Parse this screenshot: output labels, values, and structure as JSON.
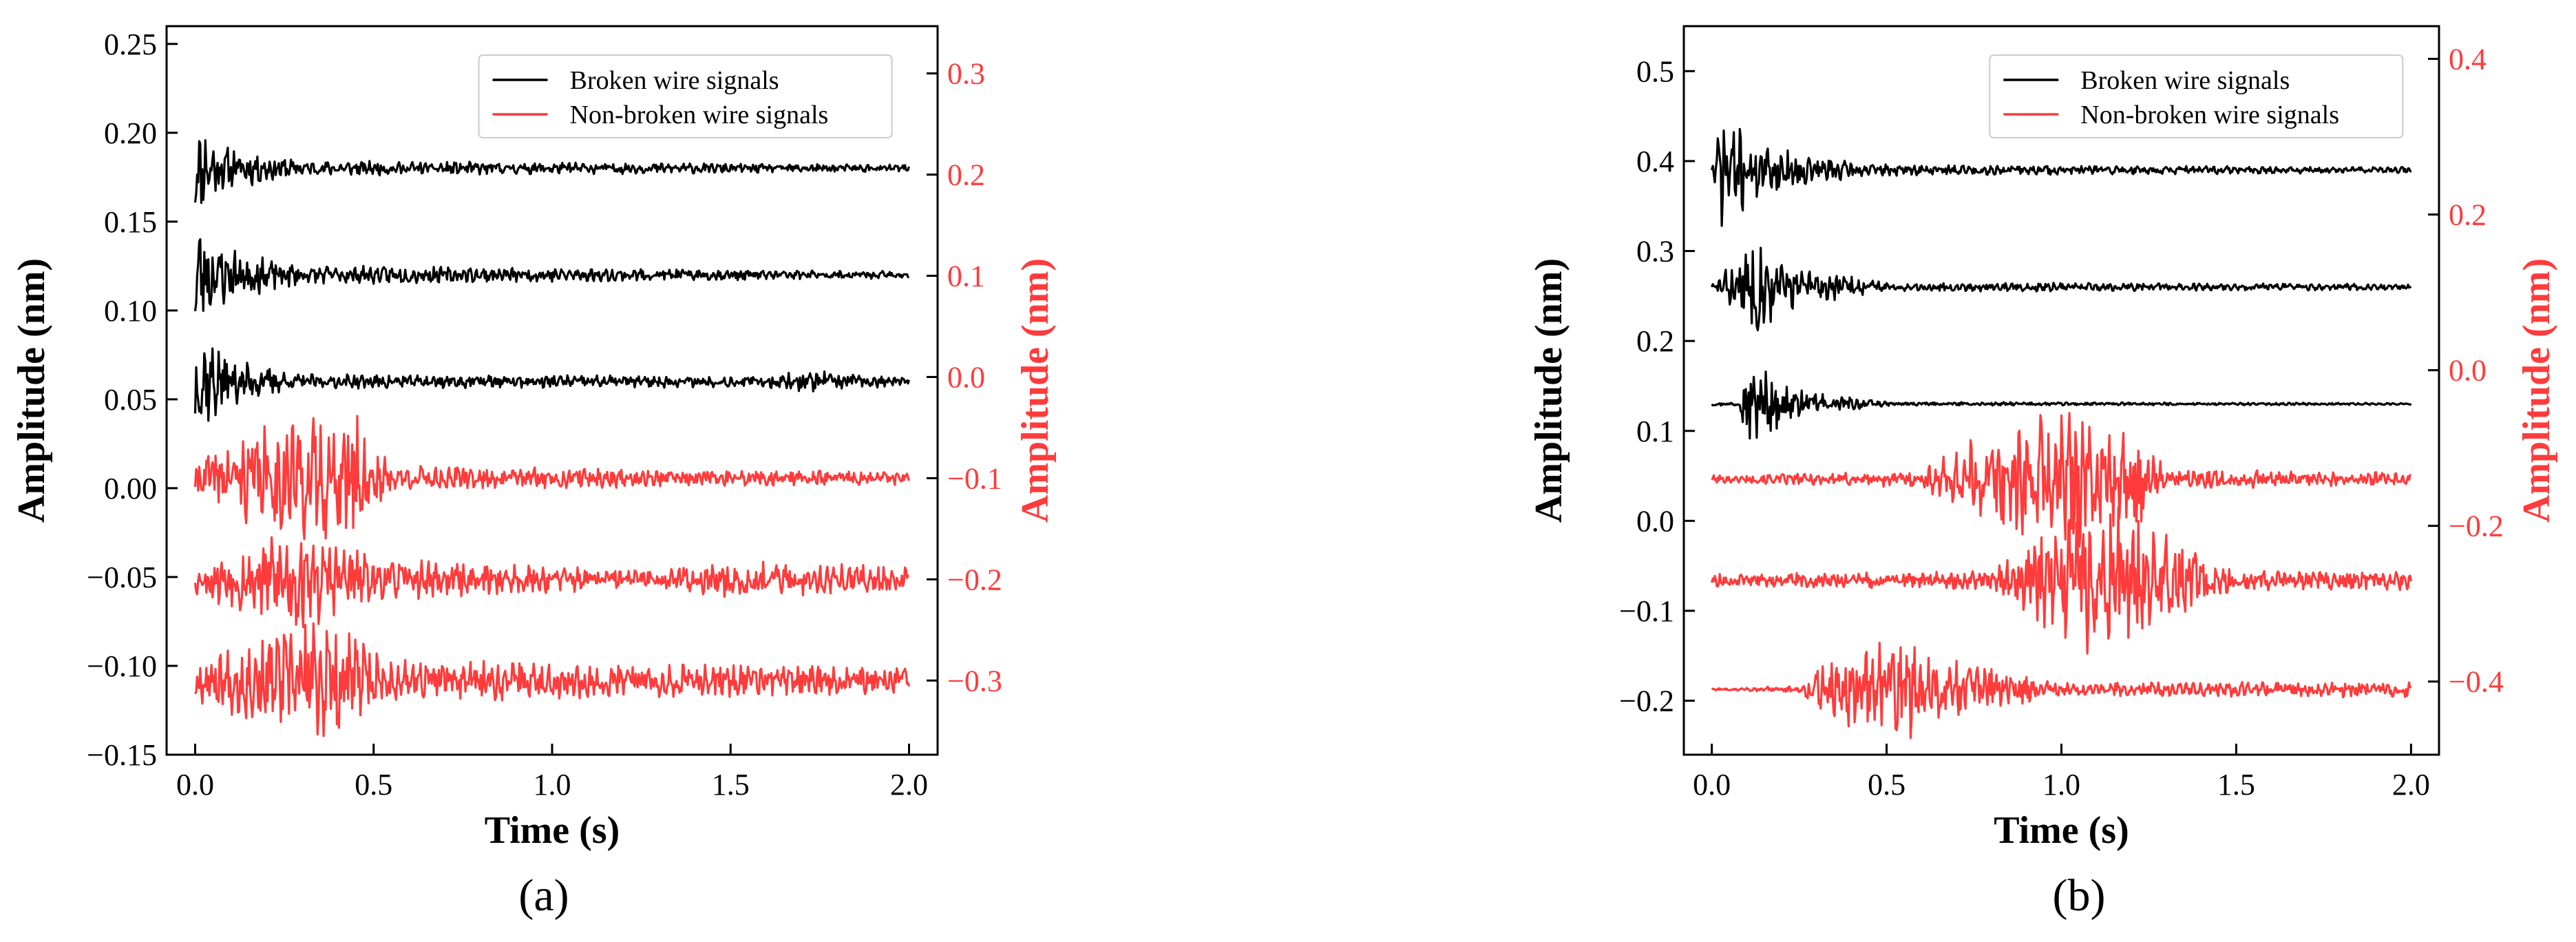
{
  "chart_data": [
    {
      "type": "line",
      "caption": "(a)",
      "xlabel": "Time (s)",
      "ylabel": "Amplitude (nm)",
      "ylabel_right": "Amplitude (nm)",
      "xlim": [
        -0.08,
        2.08
      ],
      "ylim": [
        -0.15,
        0.26
      ],
      "ylim_right": [
        -0.3733,
        0.3467
      ],
      "xticks": [
        0.0,
        0.5,
        1.0,
        1.5,
        2.0
      ],
      "xtick_labels": [
        "0.0",
        "0.5",
        "1.0",
        "1.5",
        "2.0"
      ],
      "yticks": [
        -0.15,
        -0.1,
        -0.05,
        0.0,
        0.05,
        0.1,
        0.15,
        0.2,
        0.25
      ],
      "ytick_labels": [
        "−0.15",
        "−0.10",
        "−0.05",
        "0.00",
        "0.05",
        "0.10",
        "0.15",
        "0.20",
        "0.25"
      ],
      "yticks_right": [
        -0.3,
        -0.2,
        -0.1,
        0.0,
        0.1,
        0.2,
        0.3
      ],
      "ytick_labels_right": [
        "−0.3",
        "−0.2",
        "−0.1",
        "0.0",
        "0.1",
        "0.2",
        "0.3"
      ],
      "legend": {
        "placement": "upper-center",
        "entries": [
          {
            "label": "Broken wire signals",
            "color": "#000000"
          },
          {
            "label": "Non-broken wire signals",
            "color": "#ff3b3b"
          }
        ]
      },
      "series": [
        {
          "group": "broken",
          "axis": "left",
          "color": "#000000",
          "baseline": 0.18,
          "seed": 11,
          "envelope": [
            [
              0,
              0.026
            ],
            [
              0.08,
              0.012
            ],
            [
              0.3,
              0.004
            ],
            [
              2.0,
              0.002
            ]
          ]
        },
        {
          "group": "broken",
          "axis": "left",
          "color": "#000000",
          "baseline": 0.12,
          "seed": 23,
          "envelope": [
            [
              0,
              0.03
            ],
            [
              0.1,
              0.014
            ],
            [
              0.3,
              0.005
            ],
            [
              2.0,
              0.002
            ]
          ]
        },
        {
          "group": "broken",
          "axis": "left",
          "color": "#000000",
          "baseline": 0.06,
          "seed": 37,
          "envelope": [
            [
              0,
              0.03
            ],
            [
              0.1,
              0.012
            ],
            [
              0.3,
              0.004
            ],
            [
              1.6,
              0.003
            ],
            [
              1.7,
              0.006
            ],
            [
              2.0,
              0.002
            ]
          ]
        },
        {
          "group": "non-broken",
          "axis": "right",
          "color": "#ff3b3b",
          "baseline": -0.1,
          "seed": 41,
          "envelope": [
            [
              0,
              0.02
            ],
            [
              0.25,
              0.06
            ],
            [
              0.45,
              0.06
            ],
            [
              0.55,
              0.012
            ],
            [
              2.0,
              0.006
            ]
          ]
        },
        {
          "group": "non-broken",
          "axis": "right",
          "color": "#ff3b3b",
          "baseline": -0.2,
          "seed": 53,
          "envelope": [
            [
              0,
              0.015
            ],
            [
              0.3,
              0.055
            ],
            [
              0.5,
              0.02
            ],
            [
              1.3,
              0.008
            ],
            [
              1.4,
              0.018
            ],
            [
              2.0,
              0.012
            ]
          ]
        },
        {
          "group": "non-broken",
          "axis": "right",
          "color": "#ff3b3b",
          "baseline": -0.3,
          "seed": 67,
          "envelope": [
            [
              0,
              0.02
            ],
            [
              0.35,
              0.06
            ],
            [
              0.55,
              0.02
            ],
            [
              2.0,
              0.012
            ]
          ]
        }
      ]
    },
    {
      "type": "line",
      "caption": "(b)",
      "xlabel": "Time (s)",
      "ylabel": "Amplitude (nm)",
      "ylabel_right": "Amplitude (nm)",
      "xlim": [
        -0.08,
        2.08
      ],
      "ylim": [
        -0.26,
        0.55
      ],
      "ylim_right": [
        -0.494,
        0.442
      ],
      "xticks": [
        0.0,
        0.5,
        1.0,
        1.5,
        2.0
      ],
      "xtick_labels": [
        "0.0",
        "0.5",
        "1.0",
        "1.5",
        "2.0"
      ],
      "yticks": [
        -0.2,
        -0.1,
        0.0,
        0.1,
        0.2,
        0.3,
        0.4,
        0.5
      ],
      "ytick_labels": [
        "−0.2",
        "−0.1",
        "0.0",
        "0.1",
        "0.2",
        "0.3",
        "0.4",
        "0.5"
      ],
      "yticks_right": [
        -0.4,
        -0.2,
        0.0,
        0.2,
        0.4
      ],
      "ytick_labels_right": [
        "−0.4",
        "−0.2",
        "0.0",
        "0.2",
        "0.4"
      ],
      "legend": {
        "placement": "upper-center",
        "entries": [
          {
            "label": "Broken wire signals",
            "color": "#000000"
          },
          {
            "label": "Non-broken wire signals",
            "color": "#ff3b3b"
          }
        ]
      },
      "series": [
        {
          "group": "broken",
          "axis": "left",
          "color": "#000000",
          "baseline": 0.39,
          "seed": 71,
          "envelope": [
            [
              0,
              0.005
            ],
            [
              0.03,
              0.06
            ],
            [
              0.15,
              0.025
            ],
            [
              0.45,
              0.006
            ],
            [
              2.0,
              0.003
            ]
          ]
        },
        {
          "group": "broken",
          "axis": "left",
          "color": "#000000",
          "baseline": 0.26,
          "seed": 83,
          "envelope": [
            [
              0,
              0.003
            ],
            [
              0.12,
              0.05
            ],
            [
              0.25,
              0.02
            ],
            [
              0.5,
              0.005
            ],
            [
              2.0,
              0.003
            ]
          ]
        },
        {
          "group": "broken",
          "axis": "left",
          "color": "#000000",
          "baseline": 0.13,
          "seed": 97,
          "envelope": [
            [
              0,
              0.002
            ],
            [
              0.08,
              0.002
            ],
            [
              0.1,
              0.05
            ],
            [
              0.25,
              0.015
            ],
            [
              0.5,
              0.002
            ],
            [
              2.0,
              0.001
            ]
          ]
        },
        {
          "group": "non-broken",
          "axis": "right",
          "color": "#ff3b3b",
          "baseline": -0.14,
          "seed": 101,
          "envelope": [
            [
              0,
              0.005
            ],
            [
              0.6,
              0.01
            ],
            [
              0.75,
              0.05
            ],
            [
              1.0,
              0.09
            ],
            [
              1.25,
              0.06
            ],
            [
              1.3,
              0.012
            ],
            [
              2.0,
              0.008
            ]
          ]
        },
        {
          "group": "non-broken",
          "axis": "right",
          "color": "#ff3b3b",
          "baseline": -0.27,
          "seed": 113,
          "envelope": [
            [
              0,
              0.008
            ],
            [
              0.8,
              0.012
            ],
            [
              0.95,
              0.06
            ],
            [
              1.1,
              0.1
            ],
            [
              1.35,
              0.05
            ],
            [
              1.5,
              0.012
            ],
            [
              2.0,
              0.012
            ]
          ]
        },
        {
          "group": "non-broken",
          "axis": "right",
          "color": "#ff3b3b",
          "baseline": -0.41,
          "seed": 127,
          "envelope": [
            [
              0,
              0.001
            ],
            [
              0.25,
              0.004
            ],
            [
              0.35,
              0.045
            ],
            [
              0.55,
              0.06
            ],
            [
              0.8,
              0.025
            ],
            [
              1.0,
              0.008
            ],
            [
              2.0,
              0.01
            ]
          ]
        }
      ]
    }
  ]
}
